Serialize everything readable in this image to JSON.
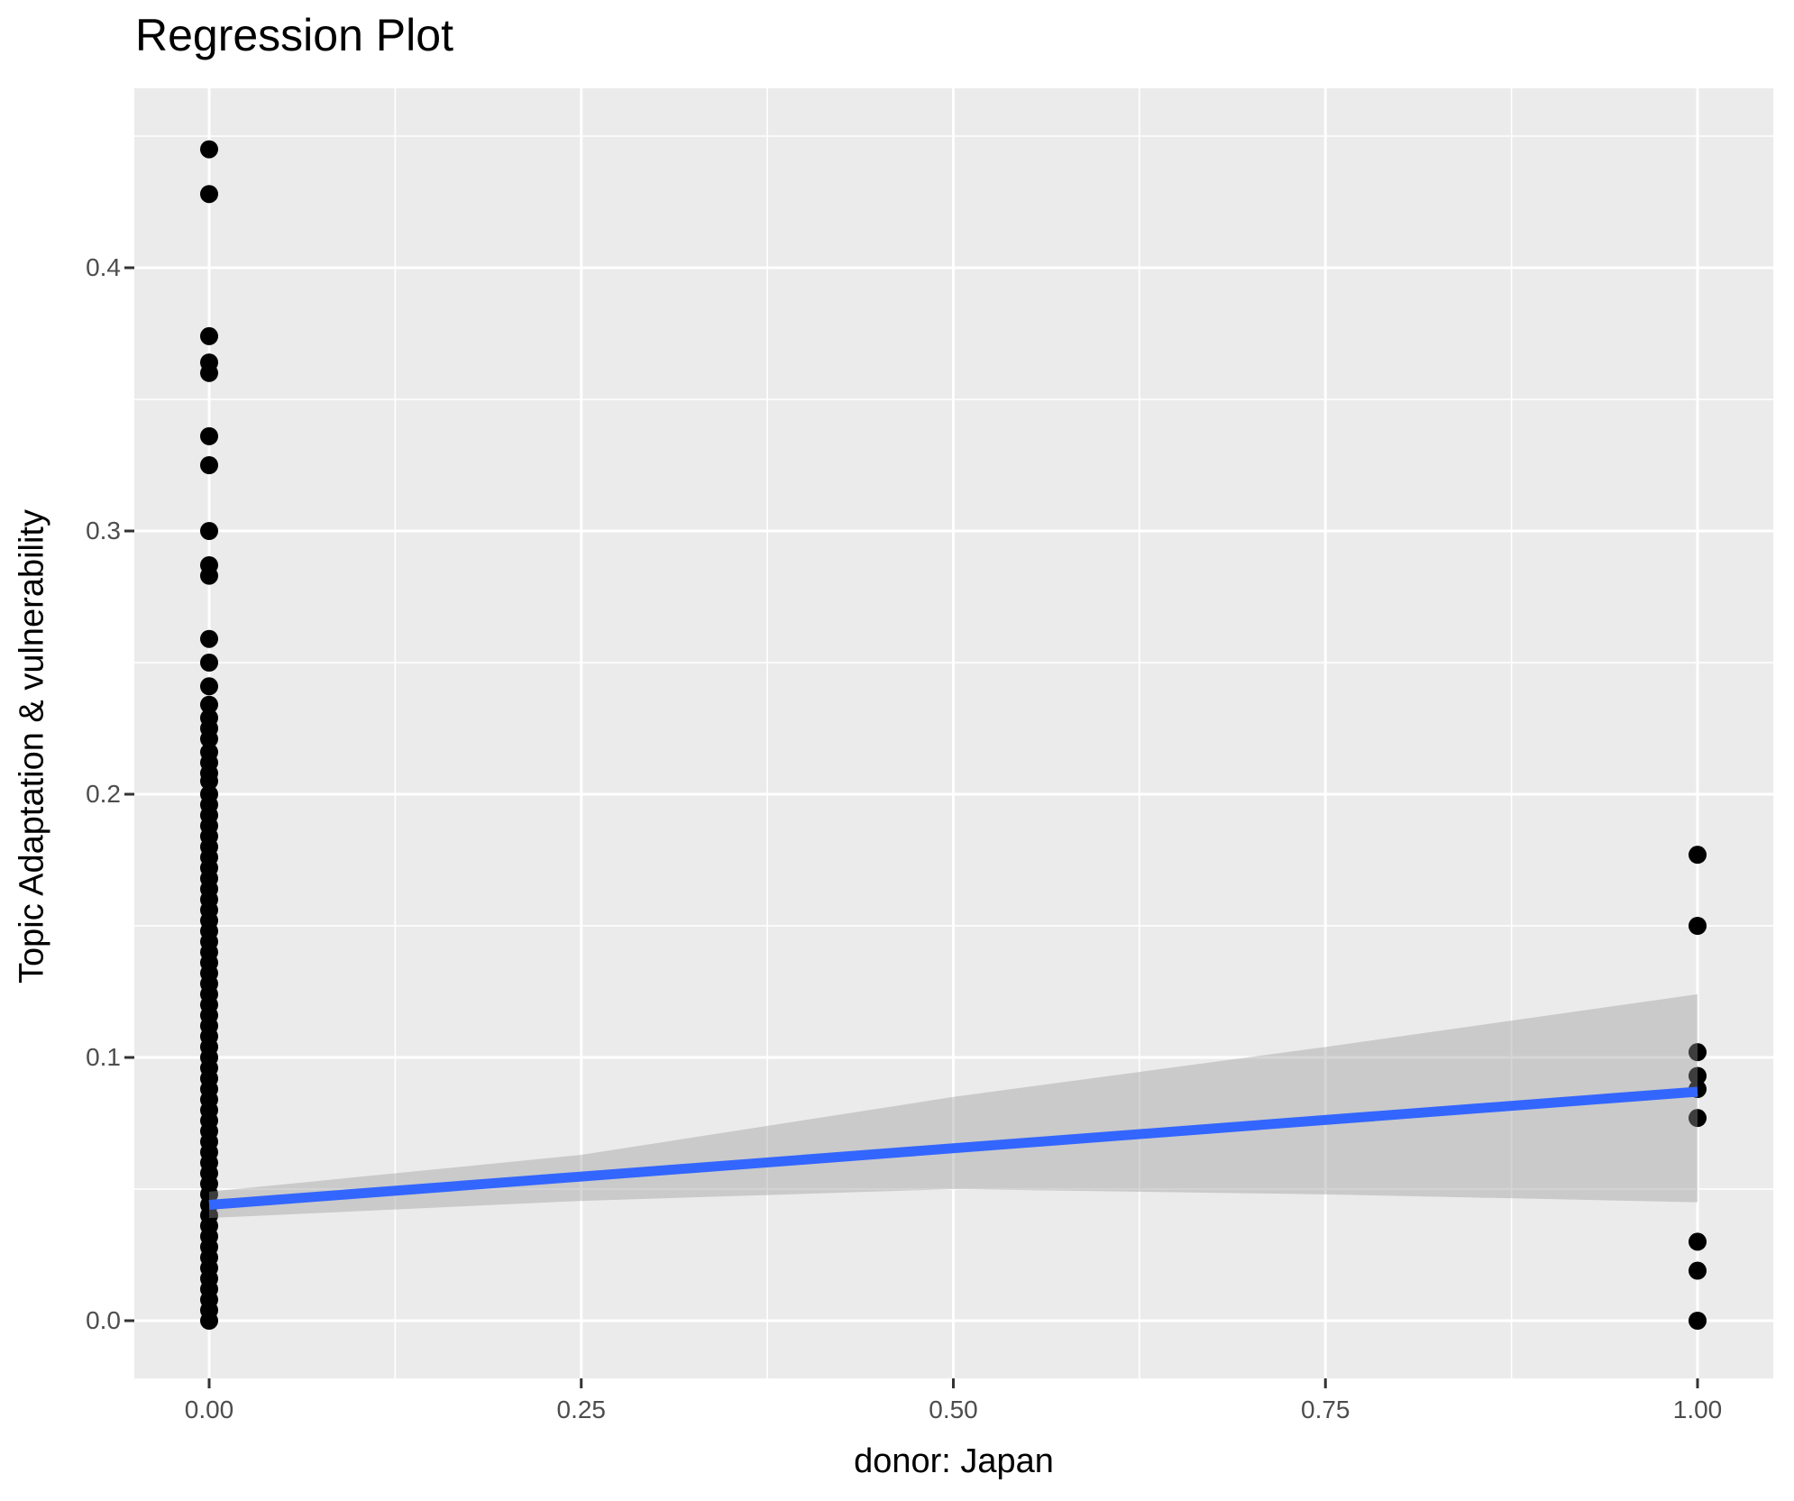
{
  "title": "Regression Plot",
  "colors": {
    "panel_background": "#EBEBEB",
    "grid": "#FFFFFF",
    "point": "#000000",
    "regression_line": "#3366FF",
    "ci_ribbon": "#999999",
    "ci_ribbon_opacity": 0.4,
    "tick_label": "#4d4d4d",
    "tick_mark": "#333333",
    "title_text": "#000000"
  },
  "chart_data": {
    "type": "scatter",
    "title": "Regression Plot",
    "xlabel": "donor: Japan",
    "ylabel": "Topic Adaptation & vulnerability",
    "xlim": [
      -0.05,
      1.05
    ],
    "ylim": [
      -0.022,
      0.468
    ],
    "grid": "white major and minor gridlines on gray panel",
    "legend_position": "none",
    "x_ticks": [
      {
        "label": "0.00",
        "value": 0.0
      },
      {
        "label": "0.25",
        "value": 0.25
      },
      {
        "label": "0.50",
        "value": 0.5
      },
      {
        "label": "0.75",
        "value": 0.75
      },
      {
        "label": "1.00",
        "value": 1.0
      }
    ],
    "y_ticks": [
      {
        "label": "0.0",
        "value": 0.0
      },
      {
        "label": "0.1",
        "value": 0.1
      },
      {
        "label": "0.2",
        "value": 0.2
      },
      {
        "label": "0.3",
        "value": 0.3
      },
      {
        "label": "0.4",
        "value": 0.4
      }
    ],
    "x_minor_ticks": [
      0.125,
      0.375,
      0.625,
      0.875
    ],
    "y_minor_ticks": [
      0.05,
      0.15,
      0.25,
      0.35,
      0.45
    ],
    "series": [
      {
        "name": "observations at donor=0",
        "x": 0.0,
        "discrete_values": [
          0.445,
          0.428,
          0.374,
          0.364,
          0.36,
          0.336,
          0.325,
          0.3,
          0.287,
          0.283,
          0.259,
          0.25,
          0.241,
          0.234,
          0.229,
          0.225,
          0.221,
          0.216,
          0.212,
          0.208,
          0.205
        ],
        "dense_values": [
          0.0,
          0.004,
          0.008,
          0.012,
          0.016,
          0.02,
          0.024,
          0.028,
          0.032,
          0.036,
          0.04,
          0.044,
          0.048,
          0.052,
          0.056,
          0.06,
          0.064,
          0.068,
          0.072,
          0.076,
          0.08,
          0.084,
          0.088,
          0.092,
          0.096,
          0.1,
          0.104,
          0.108,
          0.112,
          0.116,
          0.12,
          0.124,
          0.128,
          0.132,
          0.136,
          0.14,
          0.144,
          0.148,
          0.152,
          0.156,
          0.16,
          0.164,
          0.168,
          0.172,
          0.176,
          0.18,
          0.184,
          0.188,
          0.192,
          0.196,
          0.2
        ]
      },
      {
        "name": "observations at donor=1",
        "x": 1.0,
        "discrete_values": [
          0.177,
          0.15,
          0.102,
          0.093,
          0.088,
          0.077,
          0.03,
          0.019,
          0.0
        ],
        "dense_values": []
      }
    ],
    "regression": {
      "line": {
        "x_start": 0.0,
        "y_start": 0.044,
        "x_end": 1.0,
        "y_end": 0.087
      },
      "confidence_band": {
        "x": [
          0.0,
          0.25,
          0.5,
          0.75,
          1.0
        ],
        "upper": [
          0.049,
          0.063,
          0.085,
          0.104,
          0.124
        ],
        "lower": [
          0.039,
          0.0455,
          0.05,
          0.048,
          0.045
        ]
      }
    }
  }
}
